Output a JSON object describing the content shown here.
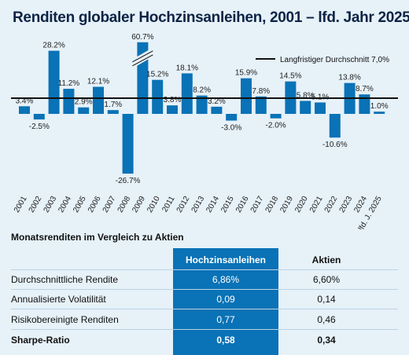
{
  "title": "Renditen globaler Hochzinsanleihen, 2001 – lfd. Jahr 2025",
  "chart_data": {
    "type": "bar",
    "categories": [
      "2001",
      "2002",
      "2003",
      "2004",
      "2005",
      "2006",
      "2007",
      "2008",
      "2009",
      "2010",
      "2011",
      "2012",
      "2013",
      "2014",
      "2015",
      "2016",
      "2017",
      "2018",
      "2019",
      "2020",
      "2021",
      "2022",
      "2023",
      "2024",
      "lfd. J. 2025"
    ],
    "values": [
      3.4,
      -2.5,
      28.2,
      11.2,
      2.9,
      12.1,
      1.7,
      -26.7,
      60.7,
      15.2,
      3.8,
      18.1,
      8.2,
      3.2,
      -3.0,
      15.9,
      7.8,
      -2.0,
      14.5,
      5.8,
      5.1,
      -10.6,
      13.8,
      8.7,
      1.0
    ],
    "value_labels": [
      "3.4%",
      "-2.5%",
      "28.2%",
      "11.2%",
      "2.9%",
      "12.1%",
      "1.7%",
      "-26.7%",
      "60.7%",
      "15.2%",
      "3.8%",
      "18.1%",
      "8.2%",
      "3.2%",
      "-3.0%",
      "15.9%",
      "7.8%",
      "-2.0%",
      "14.5%",
      "5.8%",
      "5.1%",
      "-10.6%",
      "13.8%",
      "8.7%",
      "1.0%"
    ],
    "axis_break_category": "2009",
    "reference_line": {
      "label": "Langfristiger Durchschnitt 7,0%",
      "value": 7.0
    },
    "ylim": [
      -30,
      32
    ],
    "bar_color": "#0a72b6",
    "line_color": "#111111",
    "legend_position": "top-right",
    "grid": false
  },
  "table": {
    "subtitle": "Monatsrenditen im Vergleich zu Aktien",
    "headers": [
      "",
      "Hochzinsanleihen",
      "Aktien"
    ],
    "rows": [
      {
        "label": "Durchschnittliche Rendite",
        "high_yield": "6,86%",
        "equities": "6,60%",
        "bold": false
      },
      {
        "label": "Annualisierte Volatilität",
        "high_yield": "0,09",
        "equities": "0,14",
        "bold": false
      },
      {
        "label": "Risikobereinigte Renditen",
        "high_yield": "0,77",
        "equities": "0,46",
        "bold": false
      },
      {
        "label": "Sharpe-Ratio",
        "high_yield": "0,58",
        "equities": "0,34",
        "bold": true
      }
    ],
    "highlight_color": "#0a72b6"
  }
}
